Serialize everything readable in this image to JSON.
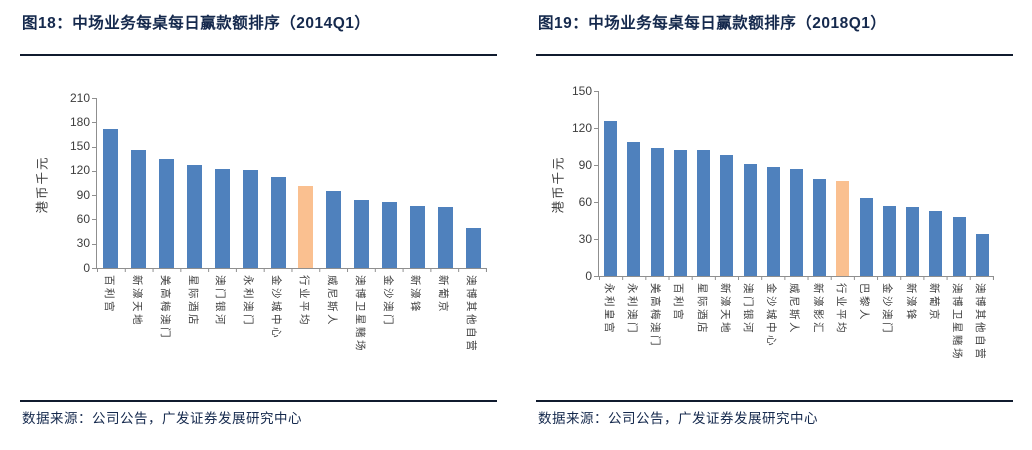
{
  "chart_data": [
    {
      "type": "bar",
      "title": "图18：中场业务每桌每日赢款额排序（2014Q1）",
      "ylabel": "港币千元",
      "xlabel": "",
      "ylim": [
        0,
        210
      ],
      "ytick_step": 30,
      "grid": false,
      "legend": false,
      "categories": [
        "百利宫",
        "新濠天地",
        "美高梅澳门",
        "星际酒店",
        "澳门银河",
        "永利澳门",
        "金沙城中心",
        "行业平均",
        "威尼斯人",
        "澳博卫星赌场",
        "金沙澳门",
        "新濠锋",
        "新葡京",
        "澳博其他自营"
      ],
      "values": [
        172,
        146,
        135,
        127,
        122,
        121,
        113,
        101,
        95,
        84,
        81,
        77,
        75,
        50
      ],
      "highlight_index": 7,
      "highlight_label": "行业平均",
      "bar_color": "#4F81BD",
      "highlight_color": "#FAC090",
      "source": "数据来源：公司公告，广发证券发展研究中心"
    },
    {
      "type": "bar",
      "title": "图19：中场业务每桌每日赢款额排序（2018Q1）",
      "ylabel": "港币千元",
      "xlabel": "",
      "ylim": [
        0,
        150
      ],
      "ytick_step": 30,
      "grid": false,
      "legend": false,
      "categories": [
        "永利皇宫",
        "永利澳门",
        "美高梅澳门",
        "百利宫",
        "星际酒店",
        "新濠天地",
        "澳门银河",
        "金沙城中心",
        "威尼斯人",
        "新濠影汇",
        "行业平均",
        "巴黎人",
        "金沙澳门",
        "新濠锋",
        "新葡京",
        "澳博卫星赌场",
        "澳博其他自营"
      ],
      "values": [
        126,
        109,
        104,
        102,
        102,
        98,
        91,
        88,
        87,
        79,
        77,
        63,
        57,
        56,
        53,
        48,
        34
      ],
      "highlight_index": 10,
      "highlight_label": "行业平均",
      "bar_color": "#4F81BD",
      "highlight_color": "#FAC090",
      "source": "数据来源：公司公告，广发证券发展研究中心"
    }
  ]
}
